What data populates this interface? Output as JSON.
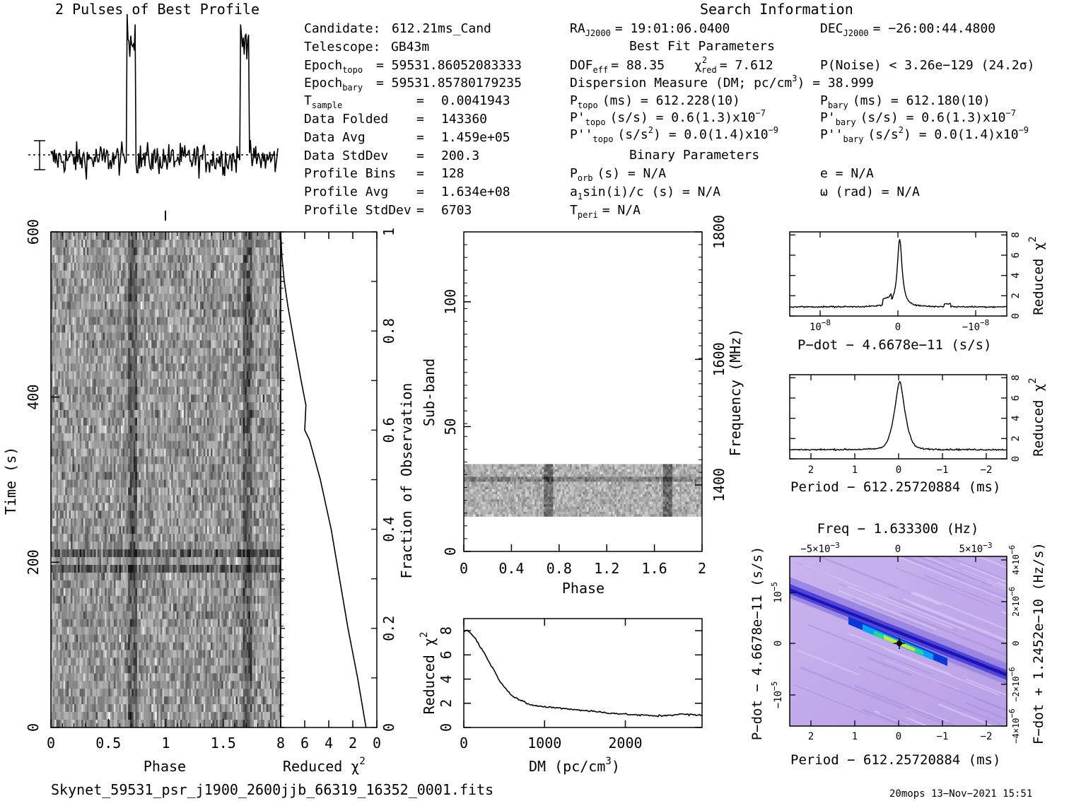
{
  "header": {
    "profile_title": "2 Pulses of Best Profile",
    "search_title": "Search Information",
    "best_fit_title": "Best Fit Parameters",
    "binary_title": "Binary Parameters"
  },
  "candidate_info": [
    {
      "label": "Candidate:",
      "value": "612.21ms_Cand"
    },
    {
      "label": "Telescope:",
      "value": "GB43m"
    },
    {
      "label": "Epoch",
      "sub": "topo",
      "value": "= 59531.86052083333"
    },
    {
      "label": "Epoch",
      "sub": "bary",
      "value": "= 59531.85780179235"
    },
    {
      "label": "T",
      "sub": "sample",
      "value": "0.0041943"
    },
    {
      "label": "Data Folded",
      "value": "143360"
    },
    {
      "label": "Data Avg",
      "value": "1.459e+05"
    },
    {
      "label": "Data StdDev",
      "value": "200.3"
    },
    {
      "label": "Profile Bins",
      "value": "128"
    },
    {
      "label": "Profile Avg",
      "value": "1.634e+08"
    },
    {
      "label": "Profile StdDev",
      "value": "6703"
    }
  ],
  "search_info": {
    "ra_label": "RA",
    "ra_sub": "J2000",
    "ra_value": "= 19:01:06.0400",
    "dec_label": "DEC",
    "dec_sub": "J2000",
    "dec_value": "= −26:00:44.4800",
    "dof_label": "DOF",
    "dof_sub": "eff",
    "dof_value": "= 88.35",
    "chi_label": "χ",
    "chi_sup": "2",
    "chi_sub": "red",
    "chi_value": "= 7.612",
    "pnoise": "P(Noise) < 3.26e−129  (24.2σ)",
    "dm_line": "Dispersion Measure (DM; pc/cm",
    "dm_sup": "3",
    "dm_value": ") = 38.999",
    "ptopo_label": "P",
    "ptopo_sub": "topo",
    "ptopo_value": "(ms) =  612.228(10)",
    "pbary_label": "P",
    "pbary_sub": "bary",
    "pbary_value": "(ms) =  612.180(10)",
    "pdtopo_label": "P'",
    "pdtopo_sub": "topo",
    "pdtopo_value": "(s/s) =  0.6(1.3)x10",
    "pdtopo_exp": "−7",
    "pdbary_label": "P'",
    "pdbary_sub": "bary",
    "pdbary_value": "(s/s) =  0.6(1.3)x10",
    "pdbary_exp": "−7",
    "pddtopo_label": "P''",
    "pddtopo_sub": "topo",
    "pddtopo_value": "(s/s",
    "pddtopo_tail": ") = 0.0(1.4)x10",
    "pddtopo_exp": "−9",
    "pddbary_label": "P''",
    "pddbary_sub": "bary",
    "pddbary_value": "(s/s",
    "pddbary_tail": ") = 0.0(1.4)x10",
    "pddbary_exp": "−9",
    "s2_sup": "2",
    "porb_label": "P",
    "porb_sub": "orb",
    "porb_value": "(s) = N/A",
    "e_value": "e = N/A",
    "a1_value": "a",
    "a1_sub": "1",
    "a1_tail": "sin(i)/c (s) = N/A",
    "omega_value": "ω (rad) = N/A",
    "tperi_label": "T",
    "tperi_sub": "peri",
    "tperi_value": "= N/A",
    "eq": "="
  },
  "footer": {
    "filename": "Skynet_59531_psr_j1900_2600jjb_66319_16352_0001.fits",
    "stamp": "20mops 13−Nov−2021 15:51"
  },
  "chart_data": [
    {
      "type": "line",
      "id": "profile",
      "title": "2 Pulses of Best Profile",
      "x_range": [
        0,
        2
      ],
      "peak_phase": [
        0.71,
        1.71
      ],
      "peak_height": 1.0,
      "noise_level": 0.12
    },
    {
      "type": "heatmap",
      "id": "time-phase",
      "xlabel": "Phase",
      "ylabel": "Time (s)",
      "xlim": [
        0,
        2
      ],
      "ylim": [
        0,
        600
      ],
      "x_ticks": [
        "0",
        "0.5",
        "1",
        "1.5"
      ],
      "y_ticks": [
        "0",
        "200",
        "400",
        "600"
      ],
      "right_ylabel": "Fraction of Observation",
      "right_ticks": [
        "0",
        "0.2",
        "0.4",
        "0.6",
        "0.8",
        "1"
      ]
    },
    {
      "type": "line",
      "id": "time-chi2",
      "xlabel": "Reduced χ",
      "xlabel_sup": "2",
      "xlim": [
        8,
        0
      ],
      "x_ticks": [
        "8",
        "6",
        "4",
        "2",
        "0"
      ],
      "fraction": [
        0,
        0.1,
        0.2,
        0.3,
        0.4,
        0.5,
        0.58,
        0.6,
        0.65,
        0.7,
        0.78,
        0.85,
        0.9,
        0.95,
        1.0
      ],
      "chi2": [
        0.9,
        1.6,
        2.4,
        3.1,
        3.8,
        4.7,
        5.6,
        6.0,
        5.9,
        6.3,
        6.9,
        7.4,
        7.7,
        7.9,
        8.0
      ]
    },
    {
      "type": "heatmap",
      "id": "subband-phase",
      "xlabel": "Phase",
      "ylabel": "Sub-band",
      "xlim": [
        0,
        2
      ],
      "ylim": [
        0,
        128
      ],
      "x_ticks": [
        "0",
        "0.4",
        "0.8",
        "1.2",
        "1.6",
        "2"
      ],
      "y_ticks": [
        "0",
        "50",
        "100"
      ],
      "right_ylabel": "Frequency (MHz)",
      "right_ticks": [
        "1400",
        "1600",
        "1800"
      ],
      "data_band": [
        14,
        35
      ]
    },
    {
      "type": "line",
      "id": "dm-chi2",
      "xlabel": "DM (pc/cm",
      "xlabel_sup": "3",
      "xlabel_tail": ")",
      "ylabel": "Reduced χ",
      "ylabel_sup": "2",
      "xlim": [
        0,
        2950
      ],
      "ylim": [
        0,
        9
      ],
      "x_ticks": [
        "0",
        "1000",
        "2000"
      ],
      "y_ticks": [
        "0",
        "2",
        "4",
        "6",
        "8"
      ],
      "x": [
        0,
        39,
        150,
        300,
        450,
        600,
        800,
        1000,
        1200,
        1500,
        1800,
        2100,
        2400,
        2700,
        2950
      ],
      "y": [
        7.9,
        8.1,
        7.3,
        5.6,
        3.8,
        2.6,
        1.9,
        1.7,
        1.6,
        1.4,
        1.2,
        1.05,
        0.95,
        1.1,
        1.0
      ]
    },
    {
      "type": "line",
      "id": "pdot-chi2",
      "xlabel": "P−dot − 4.6678e−11 (s/s)",
      "ylabel": "Reduced χ",
      "ylabel_sup": "2",
      "x_ticks": [
        "10",
        "0",
        "−10"
      ],
      "x_tick_exp": "−8",
      "y_ticks": [
        "0",
        "2",
        "4",
        "6",
        "8"
      ],
      "ylim": [
        0,
        8.3
      ],
      "peak": 7.6,
      "baseline": 0.9
    },
    {
      "type": "line",
      "id": "period-chi2",
      "xlabel": "Period − 612.25720884 (ms)",
      "ylabel": "Reduced χ",
      "ylabel_sup": "2",
      "x_ticks": [
        "2",
        "1",
        "0",
        "−1",
        "−2"
      ],
      "y_ticks": [
        "0",
        "2",
        "4",
        "6",
        "8"
      ],
      "ylim": [
        0,
        8.3
      ],
      "peak": 7.6,
      "baseline": 0.9
    },
    {
      "type": "heatmap",
      "id": "p-pdot",
      "title": "Freq − 1.633300 (Hz)",
      "xlabel": "Period − 612.25720884 (ms)",
      "ylabel": "P−dot − 4.6678e−11 (s/s)",
      "right_ylabel": "F−dot + 1.2452e−10 (Hz/s)",
      "x_ticks": [
        "2",
        "1",
        "0",
        "−1",
        "−2"
      ],
      "top_ticks": [
        "−5×10",
        "0",
        "5×10"
      ],
      "top_tick_exp": "−3",
      "y_ticks": [
        "10",
        "0",
        "−10"
      ],
      "y_tick_exp": "−5",
      "right_ticks": [
        "−4×10",
        "−2×10",
        "0",
        "2×10",
        "4×10"
      ],
      "right_tick_exp": "−6"
    }
  ]
}
